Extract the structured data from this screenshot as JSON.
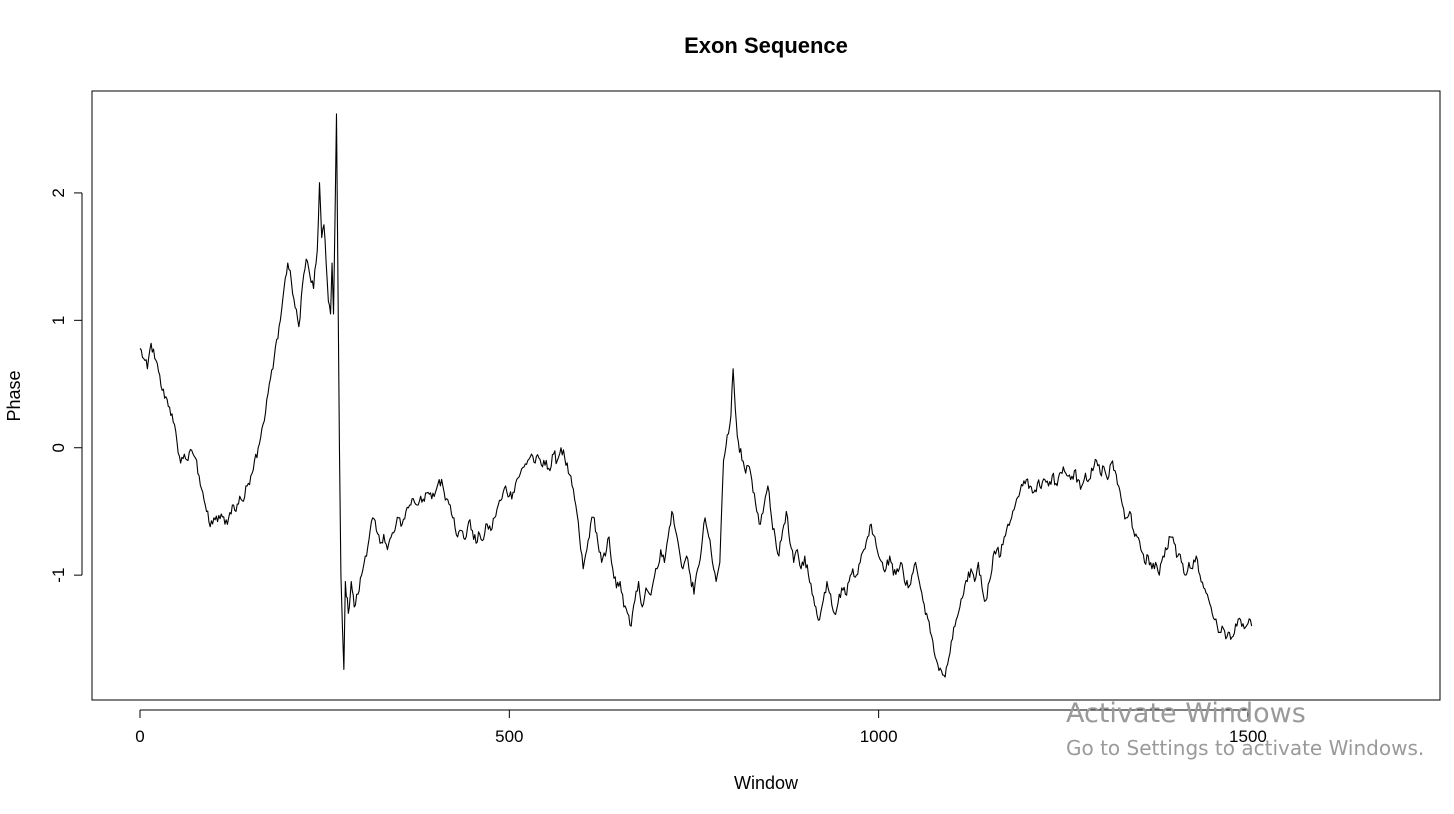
{
  "chart_data": {
    "type": "line",
    "title": "Exon Sequence",
    "xlabel": "Window",
    "ylabel": "Phase",
    "xlim": [
      -65,
      1760
    ],
    "ylim": [
      -1.98,
      2.8
    ],
    "xticks": [
      0,
      500,
      1000,
      1500
    ],
    "yticks": [
      -1,
      0,
      1,
      2
    ],
    "grid": false,
    "legend": "none",
    "line_color": "#000000",
    "series": [
      {
        "anchors": [
          [
            0,
            0.78
          ],
          [
            5,
            0.7
          ],
          [
            10,
            0.62
          ],
          [
            15,
            0.82
          ],
          [
            20,
            0.7
          ],
          [
            25,
            0.6
          ],
          [
            30,
            0.45
          ],
          [
            35,
            0.4
          ],
          [
            40,
            0.32
          ],
          [
            45,
            0.2
          ],
          [
            50,
            0.05
          ],
          [
            55,
            -0.12
          ],
          [
            60,
            -0.05
          ],
          [
            65,
            -0.1
          ],
          [
            70,
            -0.02
          ],
          [
            75,
            -0.08
          ],
          [
            80,
            -0.22
          ],
          [
            85,
            -0.35
          ],
          [
            90,
            -0.5
          ],
          [
            95,
            -0.62
          ],
          [
            100,
            -0.55
          ],
          [
            105,
            -0.58
          ],
          [
            110,
            -0.52
          ],
          [
            115,
            -0.6
          ],
          [
            120,
            -0.55
          ],
          [
            125,
            -0.45
          ],
          [
            130,
            -0.5
          ],
          [
            135,
            -0.38
          ],
          [
            140,
            -0.42
          ],
          [
            145,
            -0.3
          ],
          [
            150,
            -0.22
          ],
          [
            155,
            -0.1
          ],
          [
            160,
            0.0
          ],
          [
            165,
            0.15
          ],
          [
            170,
            0.28
          ],
          [
            175,
            0.5
          ],
          [
            180,
            0.62
          ],
          [
            185,
            0.85
          ],
          [
            190,
            1.0
          ],
          [
            195,
            1.25
          ],
          [
            200,
            1.45
          ],
          [
            205,
            1.3
          ],
          [
            210,
            1.1
          ],
          [
            215,
            0.95
          ],
          [
            220,
            1.28
          ],
          [
            225,
            1.48
          ],
          [
            230,
            1.35
          ],
          [
            235,
            1.25
          ],
          [
            240,
            1.55
          ],
          [
            243,
            2.08
          ],
          [
            246,
            1.65
          ],
          [
            249,
            1.75
          ],
          [
            252,
            1.45
          ],
          [
            255,
            1.15
          ],
          [
            258,
            1.05
          ],
          [
            260,
            1.45
          ],
          [
            262,
            1.05
          ],
          [
            264,
            1.8
          ],
          [
            266,
            2.62
          ],
          [
            268,
            1.3
          ],
          [
            270,
            0.0
          ],
          [
            272,
            -1.0
          ],
          [
            274,
            -1.4
          ],
          [
            276,
            -1.74
          ],
          [
            278,
            -1.05
          ],
          [
            282,
            -1.3
          ],
          [
            286,
            -1.05
          ],
          [
            290,
            -1.25
          ],
          [
            295,
            -1.15
          ],
          [
            300,
            -1.0
          ],
          [
            305,
            -0.85
          ],
          [
            310,
            -0.72
          ],
          [
            315,
            -0.55
          ],
          [
            320,
            -0.65
          ],
          [
            325,
            -0.75
          ],
          [
            330,
            -0.68
          ],
          [
            335,
            -0.8
          ],
          [
            340,
            -0.7
          ],
          [
            345,
            -0.65
          ],
          [
            350,
            -0.55
          ],
          [
            355,
            -0.6
          ],
          [
            360,
            -0.5
          ],
          [
            365,
            -0.45
          ],
          [
            370,
            -0.4
          ],
          [
            375,
            -0.45
          ],
          [
            380,
            -0.38
          ],
          [
            385,
            -0.42
          ],
          [
            390,
            -0.35
          ],
          [
            395,
            -0.4
          ],
          [
            400,
            -0.35
          ],
          [
            405,
            -0.25
          ],
          [
            410,
            -0.3
          ],
          [
            415,
            -0.4
          ],
          [
            420,
            -0.45
          ],
          [
            425,
            -0.55
          ],
          [
            430,
            -0.7
          ],
          [
            435,
            -0.65
          ],
          [
            440,
            -0.72
          ],
          [
            445,
            -0.58
          ],
          [
            450,
            -0.65
          ],
          [
            455,
            -0.75
          ],
          [
            460,
            -0.68
          ],
          [
            465,
            -0.72
          ],
          [
            470,
            -0.6
          ],
          [
            475,
            -0.65
          ],
          [
            480,
            -0.55
          ],
          [
            485,
            -0.45
          ],
          [
            490,
            -0.4
          ],
          [
            495,
            -0.3
          ],
          [
            500,
            -0.38
          ],
          [
            505,
            -0.35
          ],
          [
            510,
            -0.25
          ],
          [
            515,
            -0.2
          ],
          [
            520,
            -0.15
          ],
          [
            525,
            -0.1
          ],
          [
            530,
            -0.05
          ],
          [
            535,
            -0.12
          ],
          [
            540,
            -0.08
          ],
          [
            545,
            -0.15
          ],
          [
            550,
            -0.1
          ],
          [
            555,
            -0.18
          ],
          [
            560,
            -0.05
          ],
          [
            565,
            -0.1
          ],
          [
            570,
            0.0
          ],
          [
            575,
            -0.08
          ],
          [
            580,
            -0.2
          ],
          [
            585,
            -0.3
          ],
          [
            590,
            -0.45
          ],
          [
            595,
            -0.7
          ],
          [
            600,
            -0.95
          ],
          [
            605,
            -0.8
          ],
          [
            610,
            -0.6
          ],
          [
            615,
            -0.55
          ],
          [
            620,
            -0.75
          ],
          [
            625,
            -0.9
          ],
          [
            630,
            -0.85
          ],
          [
            635,
            -0.7
          ],
          [
            640,
            -0.95
          ],
          [
            645,
            -1.1
          ],
          [
            650,
            -1.05
          ],
          [
            655,
            -1.25
          ],
          [
            660,
            -1.3
          ],
          [
            665,
            -1.4
          ],
          [
            670,
            -1.2
          ],
          [
            675,
            -1.05
          ],
          [
            680,
            -1.25
          ],
          [
            685,
            -1.1
          ],
          [
            690,
            -1.15
          ],
          [
            695,
            -1.05
          ],
          [
            700,
            -0.95
          ],
          [
            705,
            -0.8
          ],
          [
            710,
            -0.9
          ],
          [
            715,
            -0.7
          ],
          [
            720,
            -0.5
          ],
          [
            725,
            -0.65
          ],
          [
            730,
            -0.8
          ],
          [
            735,
            -0.95
          ],
          [
            740,
            -0.85
          ],
          [
            745,
            -1.0
          ],
          [
            750,
            -1.15
          ],
          [
            755,
            -0.95
          ],
          [
            760,
            -0.8
          ],
          [
            765,
            -0.55
          ],
          [
            770,
            -0.7
          ],
          [
            775,
            -0.9
          ],
          [
            780,
            -1.05
          ],
          [
            785,
            -0.9
          ],
          [
            790,
            -0.1
          ],
          [
            795,
            0.1
          ],
          [
            800,
            0.25
          ],
          [
            803,
            0.62
          ],
          [
            806,
            0.3
          ],
          [
            810,
            0.05
          ],
          [
            815,
            -0.1
          ],
          [
            820,
            -0.2
          ],
          [
            825,
            -0.15
          ],
          [
            830,
            -0.35
          ],
          [
            835,
            -0.5
          ],
          [
            840,
            -0.6
          ],
          [
            845,
            -0.45
          ],
          [
            850,
            -0.3
          ],
          [
            855,
            -0.55
          ],
          [
            860,
            -0.7
          ],
          [
            865,
            -0.85
          ],
          [
            870,
            -0.65
          ],
          [
            875,
            -0.5
          ],
          [
            880,
            -0.75
          ],
          [
            885,
            -0.9
          ],
          [
            890,
            -0.8
          ],
          [
            895,
            -0.95
          ],
          [
            900,
            -0.85
          ],
          [
            905,
            -1.0
          ],
          [
            910,
            -1.15
          ],
          [
            915,
            -1.25
          ],
          [
            920,
            -1.35
          ],
          [
            925,
            -1.2
          ],
          [
            930,
            -1.05
          ],
          [
            935,
            -1.15
          ],
          [
            940,
            -1.3
          ],
          [
            945,
            -1.22
          ],
          [
            950,
            -1.1
          ],
          [
            955,
            -1.15
          ],
          [
            960,
            -1.05
          ],
          [
            965,
            -0.95
          ],
          [
            970,
            -1.0
          ],
          [
            975,
            -0.9
          ],
          [
            980,
            -0.8
          ],
          [
            985,
            -0.7
          ],
          [
            990,
            -0.6
          ],
          [
            995,
            -0.7
          ],
          [
            1000,
            -0.85
          ],
          [
            1005,
            -0.9
          ],
          [
            1010,
            -0.95
          ],
          [
            1015,
            -0.85
          ],
          [
            1020,
            -1.0
          ],
          [
            1025,
            -0.95
          ],
          [
            1030,
            -0.9
          ],
          [
            1035,
            -1.05
          ],
          [
            1040,
            -1.1
          ],
          [
            1045,
            -1.0
          ],
          [
            1050,
            -0.9
          ],
          [
            1055,
            -1.05
          ],
          [
            1060,
            -1.2
          ],
          [
            1065,
            -1.3
          ],
          [
            1070,
            -1.45
          ],
          [
            1075,
            -1.6
          ],
          [
            1080,
            -1.7
          ],
          [
            1085,
            -1.75
          ],
          [
            1090,
            -1.8
          ],
          [
            1095,
            -1.65
          ],
          [
            1100,
            -1.5
          ],
          [
            1105,
            -1.35
          ],
          [
            1110,
            -1.25
          ],
          [
            1115,
            -1.15
          ],
          [
            1120,
            -1.05
          ],
          [
            1125,
            -0.95
          ],
          [
            1130,
            -1.05
          ],
          [
            1135,
            -0.9
          ],
          [
            1140,
            -1.1
          ],
          [
            1145,
            -1.2
          ],
          [
            1150,
            -1.05
          ],
          [
            1155,
            -0.85
          ],
          [
            1160,
            -0.8
          ],
          [
            1165,
            -0.85
          ],
          [
            1170,
            -0.7
          ],
          [
            1175,
            -0.6
          ],
          [
            1180,
            -0.55
          ],
          [
            1185,
            -0.45
          ],
          [
            1190,
            -0.38
          ],
          [
            1195,
            -0.3
          ],
          [
            1200,
            -0.25
          ],
          [
            1205,
            -0.3
          ],
          [
            1210,
            -0.35
          ],
          [
            1215,
            -0.28
          ],
          [
            1220,
            -0.32
          ],
          [
            1225,
            -0.25
          ],
          [
            1230,
            -0.3
          ],
          [
            1235,
            -0.22
          ],
          [
            1240,
            -0.28
          ],
          [
            1245,
            -0.2
          ],
          [
            1250,
            -0.15
          ],
          [
            1255,
            -0.22
          ],
          [
            1260,
            -0.25
          ],
          [
            1265,
            -0.18
          ],
          [
            1270,
            -0.25
          ],
          [
            1275,
            -0.3
          ],
          [
            1280,
            -0.2
          ],
          [
            1285,
            -0.25
          ],
          [
            1290,
            -0.18
          ],
          [
            1295,
            -0.1
          ],
          [
            1300,
            -0.2
          ],
          [
            1305,
            -0.15
          ],
          [
            1310,
            -0.25
          ],
          [
            1315,
            -0.12
          ],
          [
            1320,
            -0.18
          ],
          [
            1325,
            -0.3
          ],
          [
            1330,
            -0.45
          ],
          [
            1335,
            -0.55
          ],
          [
            1340,
            -0.5
          ],
          [
            1345,
            -0.65
          ],
          [
            1350,
            -0.7
          ],
          [
            1355,
            -0.8
          ],
          [
            1360,
            -0.9
          ],
          [
            1365,
            -0.85
          ],
          [
            1370,
            -0.95
          ],
          [
            1375,
            -0.9
          ],
          [
            1380,
            -1.0
          ],
          [
            1385,
            -0.85
          ],
          [
            1390,
            -0.8
          ],
          [
            1395,
            -0.7
          ],
          [
            1400,
            -0.75
          ],
          [
            1405,
            -0.85
          ],
          [
            1410,
            -0.9
          ],
          [
            1415,
            -1.0
          ],
          [
            1420,
            -0.9
          ],
          [
            1425,
            -0.95
          ],
          [
            1430,
            -0.85
          ],
          [
            1435,
            -1.0
          ],
          [
            1440,
            -1.1
          ],
          [
            1445,
            -1.15
          ],
          [
            1450,
            -1.25
          ],
          [
            1455,
            -1.35
          ],
          [
            1460,
            -1.45
          ],
          [
            1465,
            -1.4
          ],
          [
            1470,
            -1.5
          ],
          [
            1475,
            -1.45
          ],
          [
            1480,
            -1.48
          ],
          [
            1485,
            -1.4
          ],
          [
            1490,
            -1.35
          ],
          [
            1495,
            -1.42
          ],
          [
            1500,
            -1.38
          ],
          [
            1505,
            -1.4
          ]
        ]
      }
    ]
  },
  "watermark": {
    "title": "Activate Windows",
    "subtitle": "Go to Settings to activate Windows."
  }
}
